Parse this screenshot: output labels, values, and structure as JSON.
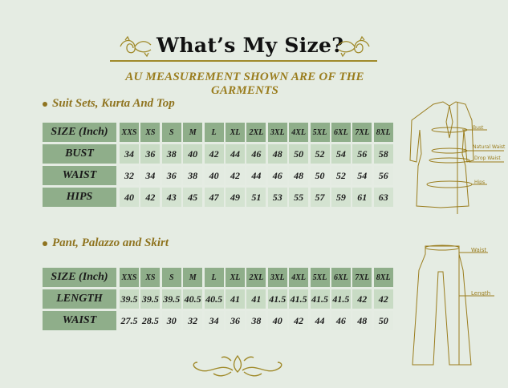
{
  "header": {
    "title": "What’s My Size?",
    "subtitle": "AU MEASUREMENT SHOWN ARE OF THE GARMENTS"
  },
  "colors": {
    "accent_gold": "#9a7d1e",
    "header_green": "#8fae8a",
    "background": "#e5ece3"
  },
  "sections": [
    {
      "title": "Suit Sets, Kurta And Top",
      "header_label": "SIZE (Inch)",
      "sizes": [
        "XXS",
        "XS",
        "S",
        "M",
        "L",
        "XL",
        "2XL",
        "3XL",
        "4XL",
        "5XL",
        "6XL",
        "7XL",
        "8XL"
      ],
      "rows": [
        {
          "label": "BUST",
          "values": [
            "34",
            "36",
            "38",
            "40",
            "42",
            "44",
            "46",
            "48",
            "50",
            "52",
            "54",
            "56",
            "58"
          ]
        },
        {
          "label": "WAIST",
          "values": [
            "32",
            "34",
            "36",
            "38",
            "40",
            "42",
            "44",
            "46",
            "48",
            "50",
            "52",
            "54",
            "56"
          ]
        },
        {
          "label": "HIPS",
          "values": [
            "40",
            "42",
            "43",
            "45",
            "47",
            "49",
            "51",
            "53",
            "55",
            "57",
            "59",
            "61",
            "63"
          ]
        }
      ]
    },
    {
      "title": "Pant, Palazzo and Skirt",
      "header_label": "SIZE (Inch)",
      "sizes": [
        "XXS",
        "XS",
        "S",
        "M",
        "L",
        "XL",
        "2XL",
        "3XL",
        "4XL",
        "5XL",
        "6XL",
        "7XL",
        "8XL"
      ],
      "rows": [
        {
          "label": "LENGTH",
          "values": [
            "39.5",
            "39.5",
            "39.5",
            "40.5",
            "40.5",
            "41",
            "41",
            "41.5",
            "41.5",
            "41.5",
            "41.5",
            "42",
            "42"
          ]
        },
        {
          "label": "WAIST",
          "values": [
            "27.5",
            "28.5",
            "30",
            "32",
            "34",
            "36",
            "38",
            "40",
            "42",
            "44",
            "46",
            "48",
            "50"
          ]
        }
      ]
    }
  ],
  "diagrams": {
    "kurta_labels": [
      "Bust",
      "Natural Waist",
      "Drop Waist",
      "Hips"
    ],
    "pant_labels": [
      "Waist",
      "Length"
    ]
  }
}
